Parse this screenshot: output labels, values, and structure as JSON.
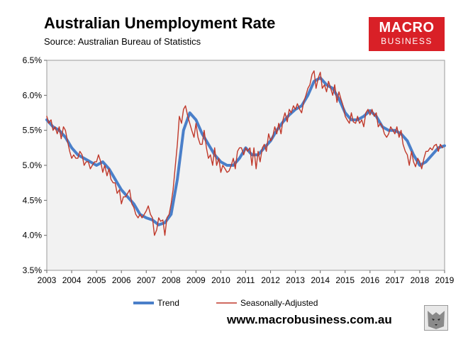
{
  "header": {
    "title": "Australian Unemployment Rate",
    "subtitle": "Source: Australian Bureau of Statistics"
  },
  "logo": {
    "line1": "MACRO",
    "line2": "BUSINESS",
    "color": "#d92027",
    "icon": "wolf-icon"
  },
  "footer": {
    "website": "www.macrobusiness.com.au"
  },
  "chart_data": {
    "type": "line",
    "title": "Australian Unemployment Rate",
    "xlabel": "",
    "ylabel": "",
    "xlim": [
      2003,
      2019
    ],
    "ylim": [
      3.5,
      6.5
    ],
    "x_ticks": [
      "2003",
      "2004",
      "2005",
      "2006",
      "2007",
      "2008",
      "2009",
      "2010",
      "2011",
      "2012",
      "2013",
      "2014",
      "2015",
      "2016",
      "2017",
      "2018",
      "2019"
    ],
    "y_ticks": [
      "3.5%",
      "4.0%",
      "4.5%",
      "5.0%",
      "5.5%",
      "6.0%",
      "6.5%"
    ],
    "grid": false,
    "legend": "bottom",
    "series": [
      {
        "name": "Trend",
        "color": "#4a7fc9",
        "points": [
          [
            2003.0,
            5.65
          ],
          [
            2003.25,
            5.55
          ],
          [
            2003.5,
            5.5
          ],
          [
            2003.75,
            5.4
          ],
          [
            2004.0,
            5.25
          ],
          [
            2004.25,
            5.15
          ],
          [
            2004.5,
            5.1
          ],
          [
            2004.75,
            5.05
          ],
          [
            2005.0,
            5.0
          ],
          [
            2005.25,
            5.05
          ],
          [
            2005.5,
            4.95
          ],
          [
            2005.75,
            4.8
          ],
          [
            2006.0,
            4.65
          ],
          [
            2006.25,
            4.55
          ],
          [
            2006.5,
            4.45
          ],
          [
            2006.75,
            4.3
          ],
          [
            2007.0,
            4.25
          ],
          [
            2007.25,
            4.22
          ],
          [
            2007.5,
            4.15
          ],
          [
            2007.75,
            4.18
          ],
          [
            2008.0,
            4.3
          ],
          [
            2008.25,
            4.8
          ],
          [
            2008.5,
            5.5
          ],
          [
            2008.75,
            5.75
          ],
          [
            2009.0,
            5.65
          ],
          [
            2009.25,
            5.45
          ],
          [
            2009.5,
            5.3
          ],
          [
            2009.75,
            5.15
          ],
          [
            2010.0,
            5.05
          ],
          [
            2010.25,
            5.0
          ],
          [
            2010.5,
            5.0
          ],
          [
            2010.75,
            5.1
          ],
          [
            2011.0,
            5.25
          ],
          [
            2011.25,
            5.15
          ],
          [
            2011.5,
            5.15
          ],
          [
            2011.75,
            5.25
          ],
          [
            2012.0,
            5.35
          ],
          [
            2012.25,
            5.5
          ],
          [
            2012.5,
            5.62
          ],
          [
            2012.75,
            5.72
          ],
          [
            2013.0,
            5.8
          ],
          [
            2013.25,
            5.85
          ],
          [
            2013.5,
            6.0
          ],
          [
            2013.75,
            6.2
          ],
          [
            2014.0,
            6.25
          ],
          [
            2014.25,
            6.15
          ],
          [
            2014.5,
            6.1
          ],
          [
            2014.75,
            5.95
          ],
          [
            2015.0,
            5.75
          ],
          [
            2015.25,
            5.65
          ],
          [
            2015.5,
            5.65
          ],
          [
            2015.75,
            5.7
          ],
          [
            2016.0,
            5.78
          ],
          [
            2016.25,
            5.7
          ],
          [
            2016.5,
            5.55
          ],
          [
            2016.75,
            5.5
          ],
          [
            2017.0,
            5.5
          ],
          [
            2017.25,
            5.45
          ],
          [
            2017.5,
            5.35
          ],
          [
            2017.75,
            5.15
          ],
          [
            2018.0,
            5.0
          ],
          [
            2018.25,
            5.05
          ],
          [
            2018.5,
            5.15
          ],
          [
            2018.75,
            5.25
          ],
          [
            2019.0,
            5.28
          ]
        ]
      },
      {
        "name": "Seasonally-Adjusted",
        "color": "#c0392b",
        "points": [
          [
            2003.0,
            5.7
          ],
          [
            2003.08,
            5.6
          ],
          [
            2003.17,
            5.65
          ],
          [
            2003.25,
            5.5
          ],
          [
            2003.33,
            5.55
          ],
          [
            2003.42,
            5.45
          ],
          [
            2003.5,
            5.55
          ],
          [
            2003.58,
            5.38
          ],
          [
            2003.67,
            5.55
          ],
          [
            2003.75,
            5.5
          ],
          [
            2003.83,
            5.35
          ],
          [
            2003.92,
            5.2
          ],
          [
            2004.0,
            5.1
          ],
          [
            2004.08,
            5.15
          ],
          [
            2004.17,
            5.1
          ],
          [
            2004.25,
            5.1
          ],
          [
            2004.33,
            5.2
          ],
          [
            2004.42,
            5.15
          ],
          [
            2004.5,
            5.0
          ],
          [
            2004.58,
            5.05
          ],
          [
            2004.67,
            5.05
          ],
          [
            2004.75,
            4.95
          ],
          [
            2004.83,
            5.0
          ],
          [
            2004.92,
            5.05
          ],
          [
            2005.0,
            5.05
          ],
          [
            2005.08,
            5.15
          ],
          [
            2005.17,
            5.05
          ],
          [
            2005.25,
            4.9
          ],
          [
            2005.33,
            5.0
          ],
          [
            2005.42,
            4.85
          ],
          [
            2005.5,
            4.95
          ],
          [
            2005.58,
            4.8
          ],
          [
            2005.67,
            4.75
          ],
          [
            2005.75,
            4.75
          ],
          [
            2005.83,
            4.6
          ],
          [
            2005.92,
            4.65
          ],
          [
            2006.0,
            4.45
          ],
          [
            2006.08,
            4.55
          ],
          [
            2006.17,
            4.55
          ],
          [
            2006.25,
            4.6
          ],
          [
            2006.33,
            4.65
          ],
          [
            2006.42,
            4.45
          ],
          [
            2006.5,
            4.4
          ],
          [
            2006.58,
            4.3
          ],
          [
            2006.67,
            4.25
          ],
          [
            2006.75,
            4.3
          ],
          [
            2006.83,
            4.25
          ],
          [
            2006.92,
            4.3
          ],
          [
            2007.0,
            4.35
          ],
          [
            2007.08,
            4.42
          ],
          [
            2007.17,
            4.3
          ],
          [
            2007.25,
            4.25
          ],
          [
            2007.33,
            4.0
          ],
          [
            2007.42,
            4.08
          ],
          [
            2007.5,
            4.25
          ],
          [
            2007.58,
            4.2
          ],
          [
            2007.67,
            4.22
          ],
          [
            2007.75,
            4.0
          ],
          [
            2007.83,
            4.25
          ],
          [
            2007.92,
            4.3
          ],
          [
            2008.0,
            4.45
          ],
          [
            2008.08,
            4.65
          ],
          [
            2008.17,
            5.0
          ],
          [
            2008.25,
            5.3
          ],
          [
            2008.33,
            5.7
          ],
          [
            2008.42,
            5.6
          ],
          [
            2008.5,
            5.8
          ],
          [
            2008.58,
            5.85
          ],
          [
            2008.67,
            5.7
          ],
          [
            2008.75,
            5.6
          ],
          [
            2008.83,
            5.5
          ],
          [
            2008.92,
            5.4
          ],
          [
            2009.0,
            5.6
          ],
          [
            2009.08,
            5.4
          ],
          [
            2009.17,
            5.3
          ],
          [
            2009.25,
            5.3
          ],
          [
            2009.33,
            5.5
          ],
          [
            2009.42,
            5.25
          ],
          [
            2009.5,
            5.1
          ],
          [
            2009.58,
            5.15
          ],
          [
            2009.67,
            5.0
          ],
          [
            2009.75,
            5.25
          ],
          [
            2009.83,
            5.0
          ],
          [
            2009.92,
            5.1
          ],
          [
            2010.0,
            4.9
          ],
          [
            2010.08,
            5.0
          ],
          [
            2010.17,
            4.95
          ],
          [
            2010.25,
            4.9
          ],
          [
            2010.33,
            4.92
          ],
          [
            2010.42,
            5.0
          ],
          [
            2010.5,
            5.1
          ],
          [
            2010.58,
            4.95
          ],
          [
            2010.67,
            5.2
          ],
          [
            2010.75,
            5.25
          ],
          [
            2010.83,
            5.25
          ],
          [
            2010.92,
            5.15
          ],
          [
            2011.0,
            5.25
          ],
          [
            2011.08,
            5.2
          ],
          [
            2011.17,
            5.25
          ],
          [
            2011.25,
            5.0
          ],
          [
            2011.33,
            5.25
          ],
          [
            2011.42,
            4.95
          ],
          [
            2011.5,
            5.2
          ],
          [
            2011.58,
            5.05
          ],
          [
            2011.67,
            5.25
          ],
          [
            2011.75,
            5.3
          ],
          [
            2011.83,
            5.2
          ],
          [
            2011.92,
            5.45
          ],
          [
            2012.0,
            5.35
          ],
          [
            2012.08,
            5.4
          ],
          [
            2012.17,
            5.55
          ],
          [
            2012.25,
            5.45
          ],
          [
            2012.33,
            5.6
          ],
          [
            2012.42,
            5.45
          ],
          [
            2012.5,
            5.65
          ],
          [
            2012.58,
            5.75
          ],
          [
            2012.67,
            5.62
          ],
          [
            2012.75,
            5.8
          ],
          [
            2012.83,
            5.75
          ],
          [
            2012.92,
            5.85
          ],
          [
            2013.0,
            5.8
          ],
          [
            2013.08,
            5.88
          ],
          [
            2013.17,
            5.8
          ],
          [
            2013.25,
            5.75
          ],
          [
            2013.33,
            5.9
          ],
          [
            2013.42,
            6.0
          ],
          [
            2013.5,
            6.1
          ],
          [
            2013.58,
            6.15
          ],
          [
            2013.67,
            6.3
          ],
          [
            2013.75,
            6.35
          ],
          [
            2013.83,
            6.1
          ],
          [
            2013.92,
            6.25
          ],
          [
            2014.0,
            6.33
          ],
          [
            2014.08,
            6.1
          ],
          [
            2014.17,
            6.15
          ],
          [
            2014.25,
            6.05
          ],
          [
            2014.33,
            6.2
          ],
          [
            2014.42,
            6.1
          ],
          [
            2014.5,
            6.0
          ],
          [
            2014.58,
            6.15
          ],
          [
            2014.67,
            5.9
          ],
          [
            2014.75,
            6.05
          ],
          [
            2014.83,
            5.95
          ],
          [
            2014.92,
            5.85
          ],
          [
            2015.0,
            5.7
          ],
          [
            2015.08,
            5.65
          ],
          [
            2015.17,
            5.6
          ],
          [
            2015.25,
            5.75
          ],
          [
            2015.33,
            5.62
          ],
          [
            2015.42,
            5.6
          ],
          [
            2015.5,
            5.7
          ],
          [
            2015.58,
            5.6
          ],
          [
            2015.67,
            5.65
          ],
          [
            2015.75,
            5.55
          ],
          [
            2015.83,
            5.75
          ],
          [
            2015.92,
            5.8
          ],
          [
            2016.0,
            5.72
          ],
          [
            2016.08,
            5.8
          ],
          [
            2016.17,
            5.7
          ],
          [
            2016.25,
            5.75
          ],
          [
            2016.33,
            5.55
          ],
          [
            2016.42,
            5.6
          ],
          [
            2016.5,
            5.55
          ],
          [
            2016.58,
            5.45
          ],
          [
            2016.67,
            5.4
          ],
          [
            2016.75,
            5.45
          ],
          [
            2016.83,
            5.55
          ],
          [
            2016.92,
            5.5
          ],
          [
            2017.0,
            5.45
          ],
          [
            2017.08,
            5.55
          ],
          [
            2017.17,
            5.4
          ],
          [
            2017.25,
            5.5
          ],
          [
            2017.33,
            5.3
          ],
          [
            2017.42,
            5.2
          ],
          [
            2017.5,
            5.15
          ],
          [
            2017.58,
            5.0
          ],
          [
            2017.67,
            5.2
          ],
          [
            2017.75,
            5.05
          ],
          [
            2017.83,
            4.98
          ],
          [
            2017.92,
            5.1
          ],
          [
            2018.0,
            5.05
          ],
          [
            2018.08,
            4.95
          ],
          [
            2018.17,
            5.1
          ],
          [
            2018.25,
            5.2
          ],
          [
            2018.33,
            5.2
          ],
          [
            2018.42,
            5.25
          ],
          [
            2018.5,
            5.22
          ],
          [
            2018.58,
            5.28
          ],
          [
            2018.67,
            5.3
          ],
          [
            2018.75,
            5.2
          ],
          [
            2018.83,
            5.3
          ],
          [
            2018.92,
            5.25
          ]
        ]
      }
    ]
  }
}
